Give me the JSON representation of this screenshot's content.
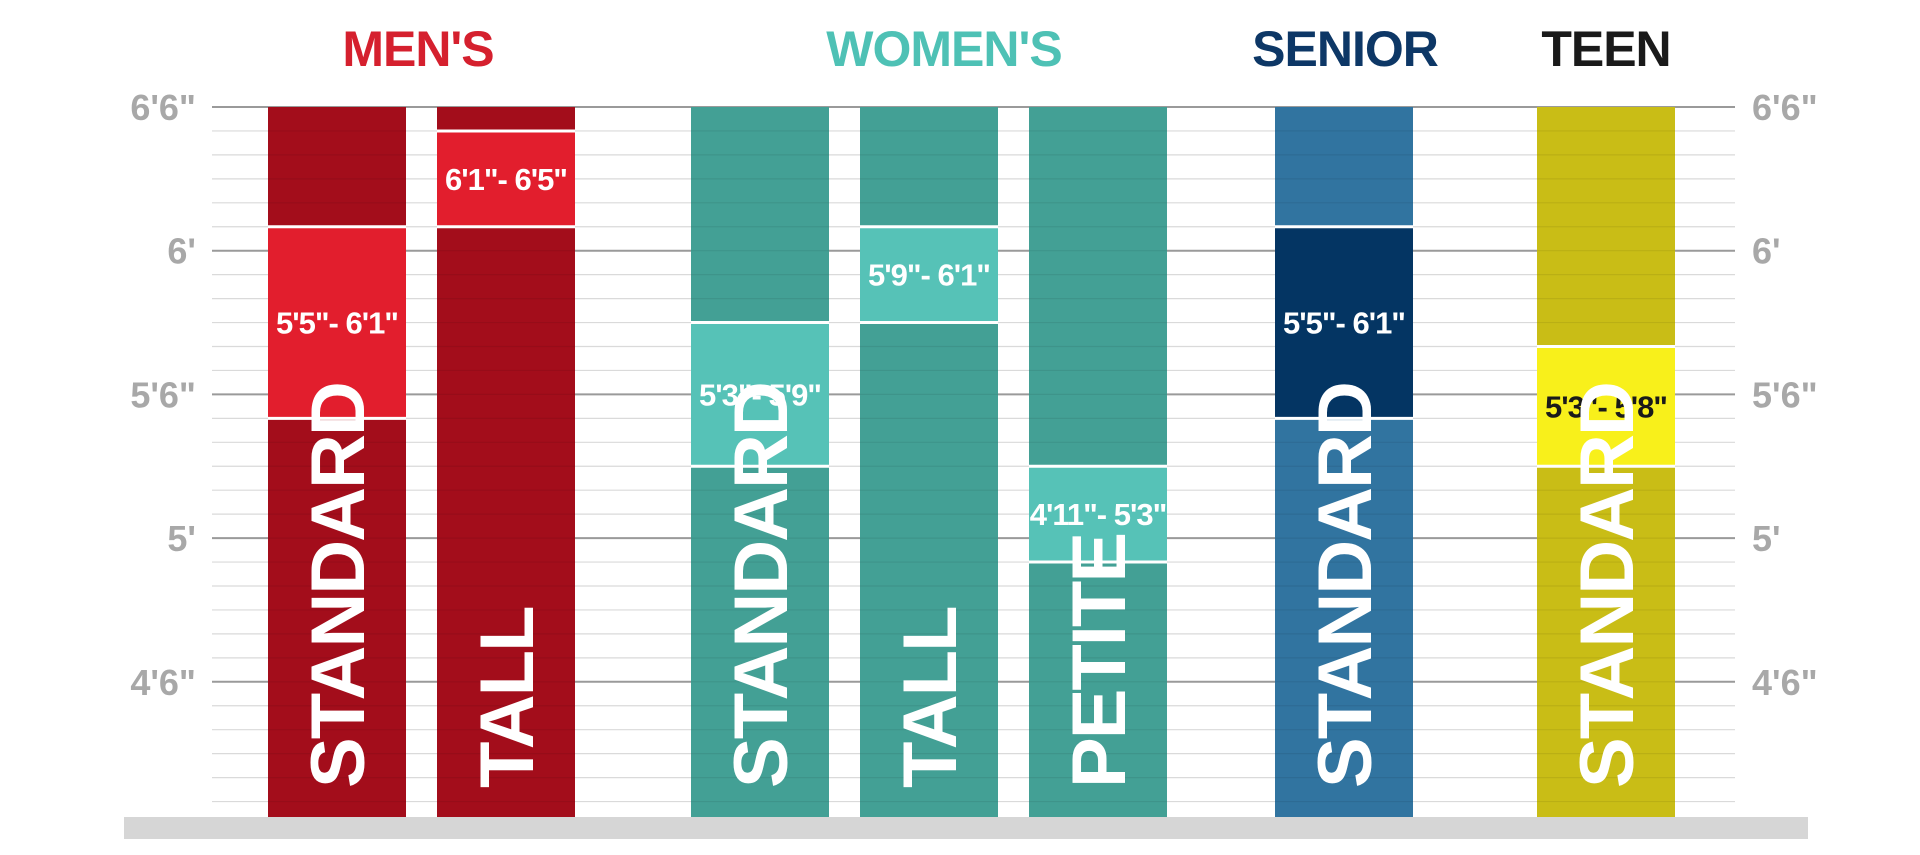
{
  "chart_data": {
    "type": "bar",
    "ylim": [
      48,
      78
    ],
    "grid": true,
    "y_ticks": [
      {
        "value": 54,
        "label": "4'6\""
      },
      {
        "value": 60,
        "label": "5'"
      },
      {
        "value": 66,
        "label": "5'6\""
      },
      {
        "value": 72,
        "label": "6'"
      },
      {
        "value": 78,
        "label": "6'6\""
      }
    ],
    "groups": [
      {
        "name": "MEN'S",
        "color": "#d5202e",
        "bars": [
          {
            "label": "STANDARD",
            "range_label": "5'5\"- 6'1\"",
            "low": 65,
            "high": 73,
            "color": "#a30d1b",
            "highlight_color": "#e21e2d",
            "range_text_color": "#ffffff"
          },
          {
            "label": "TALL",
            "range_label": "6'1\"- 6'5\"",
            "low": 73,
            "high": 77,
            "color": "#a30d1b",
            "highlight_color": "#e21e2d",
            "range_text_color": "#ffffff"
          }
        ]
      },
      {
        "name": "WOMEN'S",
        "color": "#4ec1b5",
        "bars": [
          {
            "label": "STANDARD",
            "range_label": "5'3\"- 5'9\"",
            "low": 63,
            "high": 69,
            "color": "#43a095",
            "highlight_color": "#56c2b7",
            "range_text_color": "#ffffff"
          },
          {
            "label": "TALL",
            "range_label": "5'9\"- 6'1\"",
            "low": 69,
            "high": 73,
            "color": "#43a095",
            "highlight_color": "#56c2b7",
            "range_text_color": "#ffffff"
          },
          {
            "label": "PETITE",
            "range_label": "4'11\"- 5'3\"",
            "low": 59,
            "high": 63,
            "color": "#43a095",
            "highlight_color": "#56c2b7",
            "range_text_color": "#ffffff"
          }
        ]
      },
      {
        "name": "SENIOR",
        "color": "#0d3766",
        "bars": [
          {
            "label": "STANDARD",
            "range_label": "5'5\"- 6'1\"",
            "low": 65,
            "high": 73,
            "color": "#3174a0",
            "highlight_color": "#043563",
            "range_text_color": "#ffffff"
          }
        ]
      },
      {
        "name": "TEEN",
        "color": "#1a1a1a",
        "bars": [
          {
            "label": "STANDARD",
            "range_label": "5'3\"- 5'8\"",
            "low": 63,
            "high": 68,
            "color": "#c9bd16",
            "highlight_color": "#f8f01b",
            "range_text_color": "#1a1a1a"
          }
        ]
      }
    ]
  }
}
